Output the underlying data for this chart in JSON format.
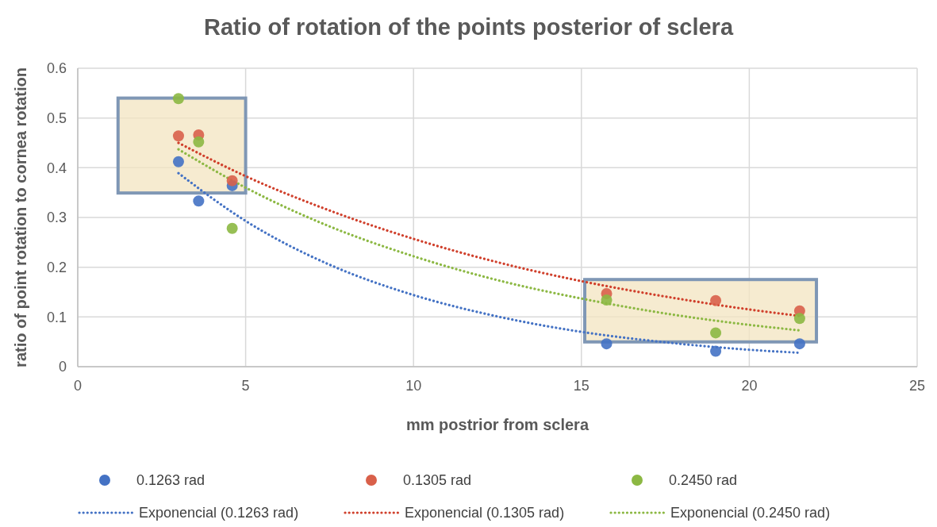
{
  "chart_data": {
    "type": "scatter",
    "title": "Ratio of rotation of the points posterior of sclera",
    "xlabel": "mm postrior from sclera",
    "ylabel": "ratio of  point rotation to cornea rotation",
    "xlim": [
      0,
      25
    ],
    "xticks": [
      0,
      5,
      10,
      15,
      20,
      25
    ],
    "ylim": [
      0,
      0.6
    ],
    "yticks": [
      0,
      0.1,
      0.2,
      0.3,
      0.4,
      0.5,
      0.6
    ],
    "grid": true,
    "legend": "bottom",
    "marker": "circle",
    "series": [
      {
        "name": "0.1263 rad",
        "color": "#4472c4",
        "x": [
          3,
          3.6,
          4.6,
          15.75,
          19,
          21.5
        ],
        "values": [
          0.412,
          0.333,
          0.364,
          0.046,
          0.031,
          0.046
        ]
      },
      {
        "name": "0.1305 rad",
        "color": "#d9604a",
        "x": [
          3,
          3.6,
          4.6,
          15.75,
          19,
          21.5
        ],
        "values": [
          0.464,
          0.466,
          0.374,
          0.147,
          0.133,
          0.112
        ]
      },
      {
        "name": "0.2450 rad",
        "color": "#8cb843",
        "x": [
          3,
          3.6,
          4.6,
          15.75,
          19,
          21.5
        ],
        "values": [
          0.539,
          0.452,
          0.278,
          0.134,
          0.068,
          0.097
        ]
      },
      {
        "name": "Exponencial (0.1263 rad)",
        "type": "line",
        "marker": "none",
        "line_style": "dotted",
        "color": "#4472c4",
        "x": [
          3,
          5,
          7.5,
          10,
          12.5,
          15,
          17.5,
          20,
          21.5
        ],
        "values": [
          0.389,
          0.293,
          0.205,
          0.144,
          0.101,
          0.07,
          0.049,
          0.034,
          0.028
        ]
      },
      {
        "name": "Exponencial (0.1305 rad)",
        "type": "line",
        "marker": "none",
        "line_style": "dotted",
        "color": "#d0402c",
        "x": [
          3,
          5,
          7.5,
          10,
          12.5,
          15,
          17.5,
          20,
          21.5
        ],
        "values": [
          0.45,
          0.383,
          0.314,
          0.257,
          0.21,
          0.172,
          0.141,
          0.115,
          0.102
        ]
      },
      {
        "name": "Exponencial (0.2450 rad)",
        "type": "line",
        "marker": "none",
        "line_style": "dotted",
        "color": "#8cb843",
        "x": [
          3,
          5,
          7.5,
          10,
          12.5,
          15,
          17.5,
          20,
          21.5
        ],
        "values": [
          0.437,
          0.36,
          0.282,
          0.222,
          0.174,
          0.137,
          0.107,
          0.084,
          0.073
        ]
      }
    ]
  }
}
